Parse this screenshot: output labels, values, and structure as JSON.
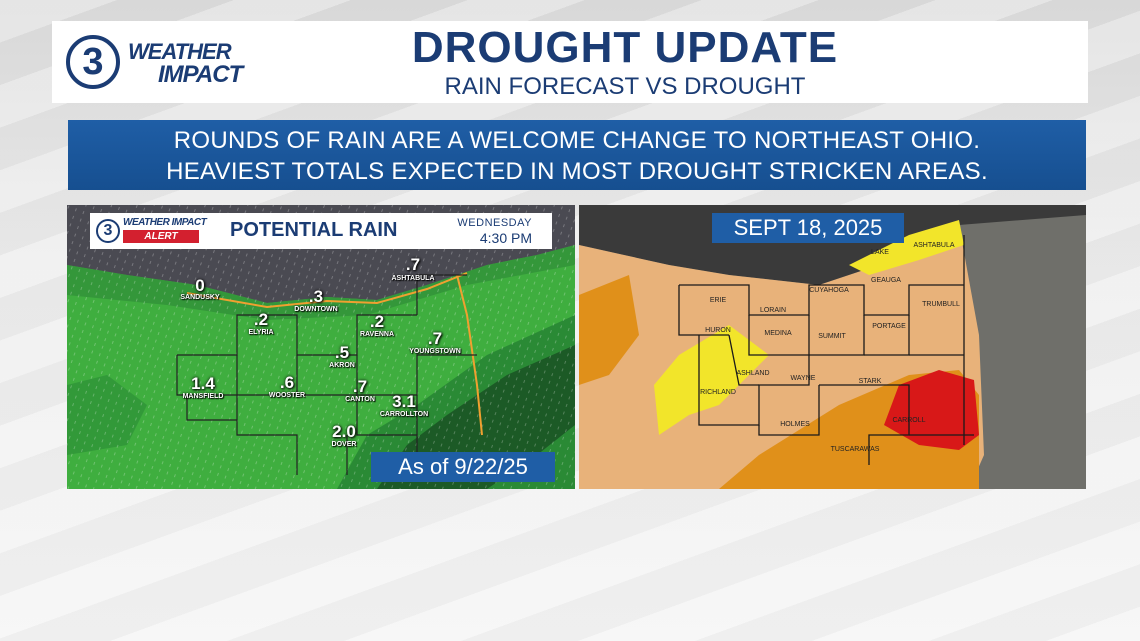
{
  "header": {
    "logo_number": "3",
    "logo_line1": "WEATHER",
    "logo_line2": "IMPACT",
    "title": "DROUGHT UPDATE",
    "subtitle": "RAIN FORECAST VS DROUGHT"
  },
  "banner": {
    "line1": "ROUNDS OF RAIN ARE A WELCOME CHANGE TO NORTHEAST OHIO.",
    "line2": "HEAVIEST TOTALS EXPECTED IN MOST DROUGHT STRICKEN AREAS."
  },
  "rain_map": {
    "logo_number": "3",
    "logo_text": "WEATHER IMPACT",
    "logo_alert": "ALERT",
    "title": "POTENTIAL RAIN",
    "day": "WEDNESDAY",
    "time": "4:30 PM",
    "as_of": "As of 9/22/25",
    "totals": [
      {
        "value": "0",
        "city": "SANDUSKY"
      },
      {
        "value": ".7",
        "city": "ASHTABULA"
      },
      {
        "value": ".3",
        "city": "DOWNTOWN"
      },
      {
        "value": ".2",
        "city": "ELYRIA"
      },
      {
        "value": ".2",
        "city": "RAVENNA"
      },
      {
        "value": ".7",
        "city": "YOUNGSTOWN"
      },
      {
        "value": ".5",
        "city": "AKRON"
      },
      {
        "value": "1.4",
        "city": "MANSFIELD"
      },
      {
        "value": ".6",
        "city": "WOOSTER"
      },
      {
        "value": ".7",
        "city": "CANTON"
      },
      {
        "value": "3.1",
        "city": "CARROLLTON"
      },
      {
        "value": "2.0",
        "city": "DOVER"
      }
    ],
    "colors": {
      "light_rain": "#3fae3f",
      "moderate_rain": "#2a8a35",
      "heavy_rain": "#1c5a26",
      "lake": "#4a4a52",
      "border": "#f0a030"
    }
  },
  "drought_map": {
    "date": "SEPT 18, 2025",
    "counties": [
      "ASHTABULA",
      "LAKE",
      "GEAUGA",
      "TRUMBULL",
      "CUYAHOGA",
      "ERIE",
      "LORAIN",
      "HURON",
      "MEDINA",
      "SUMMIT",
      "PORTAGE",
      "ASHLAND",
      "RICHLAND",
      "WAYNE",
      "STARK",
      "HOLMES",
      "TUSCARAWAS",
      "CARROLL"
    ],
    "colors": {
      "abnormally_dry": "#f2e52a",
      "moderate": "#f0c88a",
      "severe": "#e0901a",
      "extreme": "#d81818",
      "lake": "#3a3a3a"
    }
  }
}
